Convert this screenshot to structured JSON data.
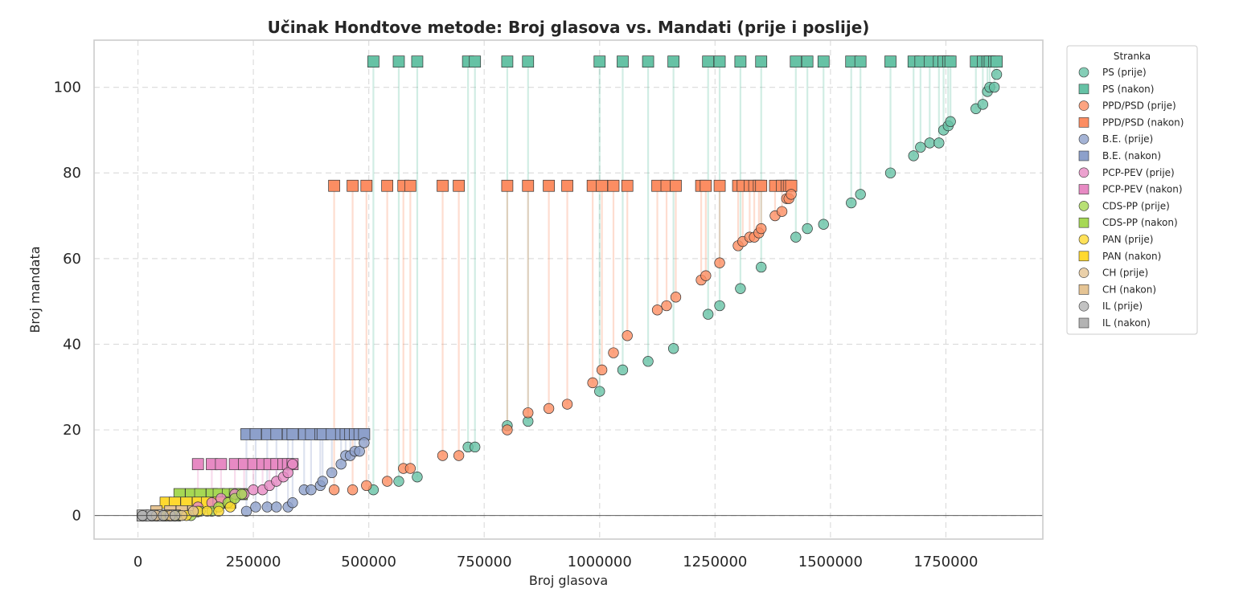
{
  "chart_data": {
    "type": "scatter",
    "title": "Učinak Hondtove metode: Broj glasova vs. Mandati (prije i poslije)",
    "xlabel": "Broj glasova",
    "ylabel": "Broj mandata",
    "xlim": [
      -95000,
      1960000
    ],
    "ylim": [
      -5.5,
      111
    ],
    "xticks": [
      0,
      250000,
      500000,
      750000,
      1000000,
      1250000,
      1500000,
      1750000
    ],
    "xtick_labels": [
      "0",
      "250000",
      "500000",
      "750000",
      "1000000",
      "1250000",
      "1500000",
      "1750000"
    ],
    "yticks": [
      0,
      20,
      40,
      60,
      80,
      100
    ],
    "ytick_labels": [
      "0",
      "20",
      "40",
      "60",
      "80",
      "100"
    ],
    "grid": true,
    "legend": {
      "title": "Stranka",
      "placement": "outside-right",
      "entries": [
        {
          "label": "PS (prije)",
          "color": "#66c2a5",
          "marker": "circle"
        },
        {
          "label": "PS (nakon)",
          "color": "#66c2a5",
          "marker": "square"
        },
        {
          "label": "PPD/PSD (prije)",
          "color": "#fc8d62",
          "marker": "circle"
        },
        {
          "label": "PPD/PSD (nakon)",
          "color": "#fc8d62",
          "marker": "square"
        },
        {
          "label": "B.E. (prije)",
          "color": "#8da0cb",
          "marker": "circle"
        },
        {
          "label": "B.E. (nakon)",
          "color": "#8da0cb",
          "marker": "square"
        },
        {
          "label": "PCP-PEV (prije)",
          "color": "#e78ac3",
          "marker": "circle"
        },
        {
          "label": "PCP-PEV (nakon)",
          "color": "#e78ac3",
          "marker": "square"
        },
        {
          "label": "CDS-PP (prije)",
          "color": "#a6d854",
          "marker": "circle"
        },
        {
          "label": "CDS-PP (nakon)",
          "color": "#a6d854",
          "marker": "square"
        },
        {
          "label": "PAN (prije)",
          "color": "#ffd92f",
          "marker": "circle"
        },
        {
          "label": "PAN (nakon)",
          "color": "#ffd92f",
          "marker": "square"
        },
        {
          "label": "CH (prije)",
          "color": "#e5c494",
          "marker": "circle"
        },
        {
          "label": "CH (nakon)",
          "color": "#e5c494",
          "marker": "square"
        },
        {
          "label": "IL (prije)",
          "color": "#b3b3b3",
          "marker": "circle"
        },
        {
          "label": "IL (nakon)",
          "color": "#b3b3b3",
          "marker": "square"
        }
      ]
    },
    "series": [
      {
        "party": "PS",
        "color": "#66c2a5",
        "x": [
          510000,
          565000,
          605000,
          715000,
          730000,
          800000,
          845000,
          1000000,
          1050000,
          1105000,
          1160000,
          1235000,
          1260000,
          1305000,
          1350000,
          1425000,
          1450000,
          1485000,
          1545000,
          1565000,
          1630000,
          1680000,
          1695000,
          1715000,
          1735000,
          1745000,
          1755000,
          1760000,
          1815000,
          1830000,
          1840000,
          1845000,
          1855000,
          1860000
        ],
        "y_before": [
          6,
          8,
          9,
          16,
          16,
          21,
          22,
          29,
          34,
          36,
          39,
          47,
          49,
          53,
          58,
          65,
          67,
          68,
          73,
          75,
          80,
          84,
          86,
          87,
          87,
          90,
          91,
          92,
          95,
          96,
          99,
          100,
          100,
          103
        ],
        "y_after": [
          106,
          106,
          106,
          106,
          106,
          106,
          106,
          106,
          106,
          106,
          106,
          106,
          106,
          106,
          106,
          106,
          106,
          106,
          106,
          106,
          106,
          106,
          106,
          106,
          106,
          106,
          106,
          106,
          106,
          106,
          106,
          106,
          106,
          106
        ]
      },
      {
        "party": "PPD/PSD",
        "color": "#fc8d62",
        "x": [
          425000,
          465000,
          495000,
          540000,
          575000,
          590000,
          660000,
          695000,
          800000,
          845000,
          890000,
          930000,
          985000,
          1005000,
          1030000,
          1060000,
          1125000,
          1145000,
          1165000,
          1220000,
          1230000,
          1260000,
          1300000,
          1310000,
          1325000,
          1335000,
          1345000,
          1350000,
          1380000,
          1395000,
          1405000,
          1410000,
          1415000
        ],
        "y_before": [
          6,
          6,
          7,
          8,
          11,
          11,
          14,
          14,
          20,
          24,
          25,
          26,
          31,
          34,
          38,
          42,
          48,
          49,
          51,
          55,
          56,
          59,
          63,
          64,
          65,
          65,
          66,
          67,
          70,
          71,
          74,
          74,
          75
        ],
        "y_after": [
          77,
          77,
          77,
          77,
          77,
          77,
          77,
          77,
          77,
          77,
          77,
          77,
          77,
          77,
          77,
          77,
          77,
          77,
          77,
          77,
          77,
          77,
          77,
          77,
          77,
          77,
          77,
          77,
          77,
          77,
          77,
          77,
          77
        ]
      },
      {
        "party": "B.E.",
        "color": "#8da0cb",
        "x": [
          235000,
          255000,
          280000,
          300000,
          325000,
          335000,
          360000,
          375000,
          395000,
          400000,
          420000,
          440000,
          450000,
          460000,
          470000,
          480000,
          490000
        ],
        "y_before": [
          1,
          2,
          2,
          2,
          2,
          3,
          6,
          6,
          7,
          8,
          10,
          12,
          14,
          14,
          15,
          15,
          17
        ],
        "y_after": [
          19,
          19,
          19,
          19,
          19,
          19,
          19,
          19,
          19,
          19,
          19,
          19,
          19,
          19,
          19,
          19,
          19
        ]
      },
      {
        "party": "PCP-PEV",
        "color": "#e78ac3",
        "x": [
          130000,
          160000,
          180000,
          210000,
          230000,
          250000,
          270000,
          285000,
          300000,
          315000,
          325000,
          335000
        ],
        "y_before": [
          2,
          3,
          4,
          5,
          5,
          6,
          6,
          7,
          8,
          9,
          10,
          12
        ],
        "y_after": [
          12,
          12,
          12,
          12,
          12,
          12,
          12,
          12,
          12,
          12,
          12,
          12
        ]
      },
      {
        "party": "CDS-PP",
        "color": "#a6d854",
        "x": [
          90000,
          115000,
          135000,
          160000,
          175000,
          195000,
          210000,
          225000
        ],
        "y_before": [
          0,
          0,
          1,
          1,
          2,
          3,
          4,
          5
        ],
        "y_after": [
          5,
          5,
          5,
          5,
          5,
          5,
          5,
          5
        ]
      },
      {
        "party": "PAN",
        "color": "#ffd92f",
        "x": [
          60000,
          80000,
          105000,
          130000,
          150000,
          175000,
          200000
        ],
        "y_before": [
          0,
          0,
          0,
          1,
          1,
          1,
          2
        ],
        "y_after": [
          3,
          3,
          3,
          3,
          3,
          3,
          3
        ]
      },
      {
        "party": "CH",
        "color": "#e5c494",
        "x": [
          40000,
          70000,
          95000,
          120000
        ],
        "y_before": [
          0,
          0,
          0,
          1
        ],
        "y_after": [
          1,
          1,
          1,
          1
        ]
      },
      {
        "party": "IL",
        "color": "#b3b3b3",
        "x": [
          10000,
          30000,
          55000,
          80000
        ],
        "y_before": [
          0,
          0,
          0,
          0
        ],
        "y_after": [
          0,
          0,
          0,
          0
        ]
      }
    ]
  }
}
